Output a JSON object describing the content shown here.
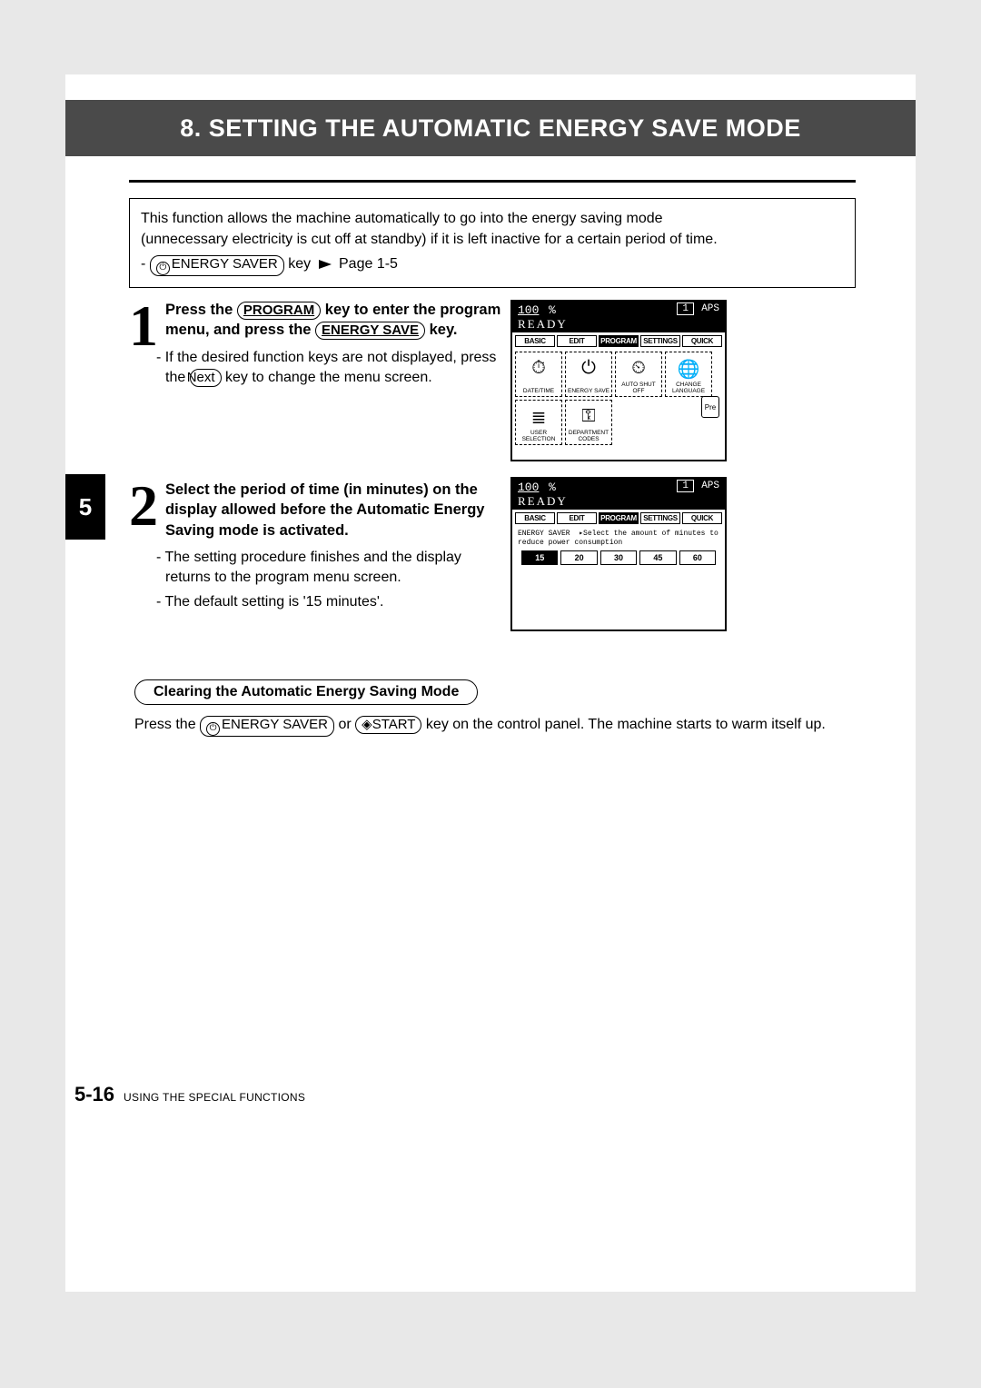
{
  "header": {
    "title": "8. SETTING THE AUTOMATIC ENERGY SAVE MODE"
  },
  "intro": {
    "line1": "This function allows the machine automatically to go into the energy saving mode",
    "line2": "(unnecessary electricity is cut off at standby) if it is left inactive for a certain period of time.",
    "key_label": "ENERGY SAVER",
    "key_suffix": " key ",
    "page_ref": " Page 1-5"
  },
  "step1": {
    "num": "1",
    "head_a": "Press the ",
    "key1": "PROGRAM",
    "head_b": " key to enter the program menu, and press the ",
    "key2": "ENERGY SAVE",
    "head_c": " key.",
    "bullet_a": "If the desired function keys are not displayed, press the ",
    "key_next": "Next",
    "bullet_b": " key to change the menu screen."
  },
  "step2": {
    "num": "2",
    "head": "Select the period of time (in minutes) on the display allowed before the Automatic Energy Saving mode is activated.",
    "bullet1": "The setting procedure finishes and the display returns to the program menu screen.",
    "bullet2": "The default setting is '15 minutes'."
  },
  "tab5": "5",
  "lcd": {
    "zoom": "100",
    "pct": "%",
    "count": "1",
    "aps": "APS",
    "ready": "READY",
    "tabs": {
      "t0": "BASIC",
      "t1": "EDIT",
      "t2": "PROGRAM",
      "t3": "SETTINGS",
      "t4": "QUICK"
    },
    "pre": "Pre",
    "btns": {
      "b0": "DATE/TIME",
      "b1": "ENERGY SAVE",
      "b2": "AUTO SHUT OFF",
      "b3": "CHANGE LANGUAGE",
      "b4": "USER SELECTION",
      "b5": "DEPARTMENT CODES"
    },
    "msg_label": "ENERGY SAVER",
    "msg_text": "▸Select the amount of minutes to reduce power consumption",
    "opts": {
      "o0": "15",
      "o1": "20",
      "o2": "30",
      "o3": "45",
      "o4": "60"
    }
  },
  "clearing": {
    "title": "Clearing the Automatic Energy Saving Mode",
    "text_a": "Press the ",
    "key1": "ENERGY SAVER",
    "text_b": " or ",
    "key2": "START",
    "text_c": " key on the control panel. The machine starts to warm itself up."
  },
  "footer": {
    "page": "5-16",
    "chapter": "USING THE SPECIAL FUNCTIONS"
  }
}
